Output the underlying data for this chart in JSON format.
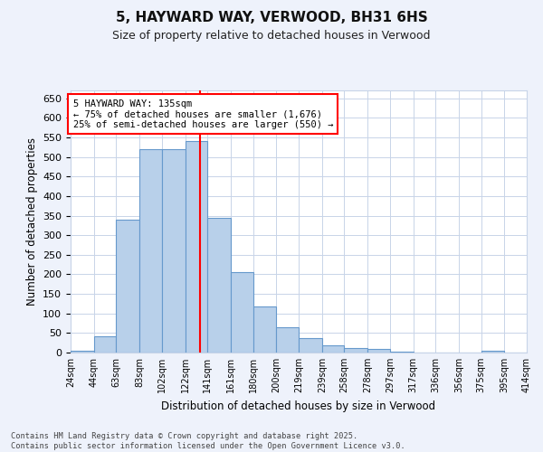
{
  "title_line1": "5, HAYWARD WAY, VERWOOD, BH31 6HS",
  "title_line2": "Size of property relative to detached houses in Verwood",
  "xlabel": "Distribution of detached houses by size in Verwood",
  "ylabel": "Number of detached properties",
  "bar_color": "#b8d0ea",
  "bar_edge_color": "#6699cc",
  "vline_x": 135,
  "vline_color": "red",
  "annotation_line1": "5 HAYWARD WAY: 135sqm",
  "annotation_line2": "← 75% of detached houses are smaller (1,676)",
  "annotation_line3": "25% of semi-detached houses are larger (550) →",
  "bin_edges": [
    24,
    44,
    63,
    83,
    102,
    122,
    141,
    161,
    180,
    200,
    219,
    239,
    258,
    278,
    297,
    317,
    336,
    356,
    375,
    395,
    414
  ],
  "heights": [
    5,
    42,
    340,
    520,
    520,
    540,
    345,
    205,
    118,
    65,
    36,
    18,
    12,
    9,
    3,
    0,
    0,
    0,
    4,
    0
  ],
  "bin_labels": [
    "24sqm",
    "44sqm",
    "63sqm",
    "83sqm",
    "102sqm",
    "122sqm",
    "141sqm",
    "161sqm",
    "180sqm",
    "200sqm",
    "219sqm",
    "239sqm",
    "258sqm",
    "278sqm",
    "297sqm",
    "317sqm",
    "336sqm",
    "356sqm",
    "375sqm",
    "395sqm",
    "414sqm"
  ],
  "ylim": [
    0,
    670
  ],
  "yticks": [
    0,
    50,
    100,
    150,
    200,
    250,
    300,
    350,
    400,
    450,
    500,
    550,
    600,
    650
  ],
  "footer_text": "Contains HM Land Registry data © Crown copyright and database right 2025.\nContains public sector information licensed under the Open Government Licence v3.0.",
  "background_color": "#eef2fb",
  "plot_background": "#ffffff",
  "grid_color": "#c8d4e8"
}
